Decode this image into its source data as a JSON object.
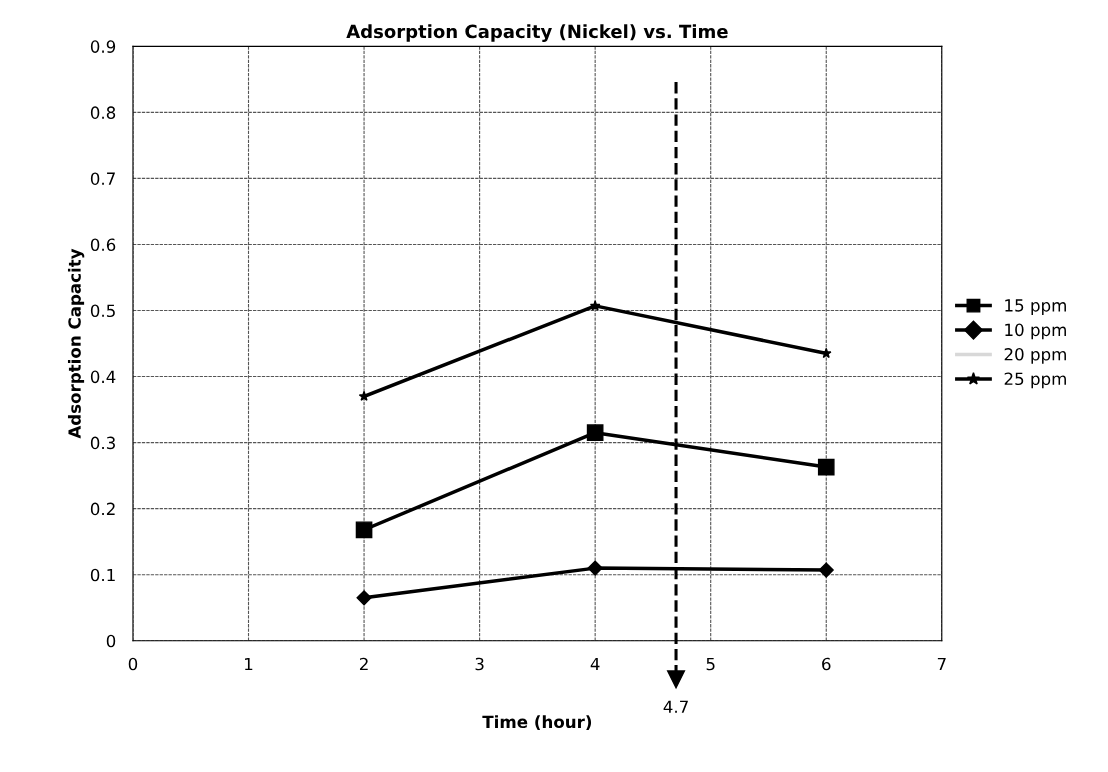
{
  "chart_data": {
    "type": "line",
    "title": "Adsorption Capacity (Nickel) vs. Time",
    "xlabel": "Time (hour)",
    "ylabel": "Adsorption Capacity",
    "x": [
      2,
      4,
      6
    ],
    "series": [
      {
        "name": "15 ppm",
        "color": "#000000",
        "marker": "square",
        "values": [
          0.168,
          0.315,
          0.263
        ]
      },
      {
        "name": "10 ppm",
        "color": "#000000",
        "marker": "diamond",
        "values": [
          0.065,
          0.11,
          0.107
        ]
      },
      {
        "name": "20 ppm",
        "color": "#d8d8d8",
        "marker": "none",
        "values": [
          null,
          null,
          null
        ]
      },
      {
        "name": "25 ppm",
        "color": "#000000",
        "marker": "star",
        "values": [
          0.37,
          0.507,
          0.435
        ]
      }
    ],
    "xlim": [
      0,
      7
    ],
    "xticks": [
      0,
      1,
      2,
      3,
      4,
      5,
      6,
      7
    ],
    "ylim": [
      0,
      0.9
    ],
    "yticks": [
      0,
      0.1,
      0.2,
      0.3,
      0.4,
      0.5,
      0.6,
      0.7,
      0.8,
      0.9
    ],
    "ref_lines": [
      {
        "axis": "x",
        "value": 4.7,
        "label": "4.7",
        "color": "#000000",
        "line_style": "dashed"
      }
    ],
    "grid": true,
    "legend": "right",
    "line_style": "solid"
  }
}
